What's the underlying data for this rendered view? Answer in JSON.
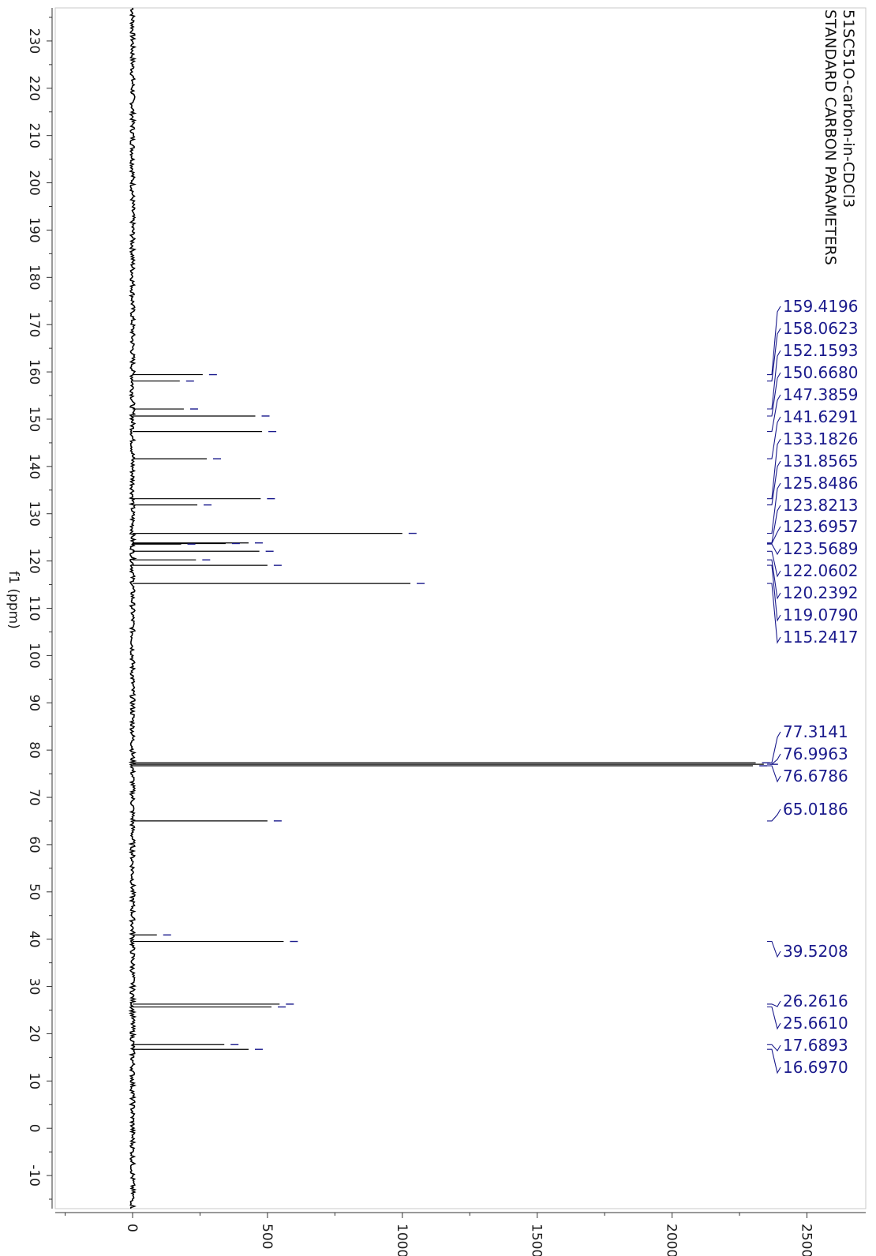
{
  "colors": {
    "spectrum": "#000000",
    "annotation": "#1a1a8c",
    "axis": "#333333",
    "frame": "#c8c8c8"
  },
  "chart_data": {
    "type": "line",
    "orientation": "rotated-90",
    "title_lines": [
      "51SC51O-carbon-in-CDCl3",
      "STANDARD CARBON PARAMETERS"
    ],
    "xlabel": "f1 (ppm)",
    "ylabel": "",
    "xlim": [
      237,
      -17
    ],
    "ylim": [
      -250,
      2700
    ],
    "x_ticks": [
      230,
      220,
      210,
      200,
      190,
      180,
      170,
      160,
      150,
      140,
      130,
      120,
      110,
      100,
      90,
      80,
      70,
      60,
      50,
      40,
      30,
      20,
      10,
      0,
      -10
    ],
    "y_ticks": [
      0,
      500,
      1000,
      1500,
      2000,
      2500
    ],
    "peaks": [
      {
        "ppm": 159.4196,
        "intensity": 260
      },
      {
        "ppm": 158.0623,
        "intensity": 175
      },
      {
        "ppm": 152.1593,
        "intensity": 190
      },
      {
        "ppm": 150.668,
        "intensity": 455
      },
      {
        "ppm": 147.3859,
        "intensity": 480
      },
      {
        "ppm": 141.6291,
        "intensity": 275
      },
      {
        "ppm": 133.1826,
        "intensity": 475
      },
      {
        "ppm": 131.8565,
        "intensity": 240
      },
      {
        "ppm": 125.8486,
        "intensity": 1000
      },
      {
        "ppm": 123.8213,
        "intensity": 430
      },
      {
        "ppm": 123.6957,
        "intensity": 345
      },
      {
        "ppm": 123.5689,
        "intensity": 180
      },
      {
        "ppm": 122.0602,
        "intensity": 470
      },
      {
        "ppm": 120.2392,
        "intensity": 235
      },
      {
        "ppm": 119.079,
        "intensity": 500
      },
      {
        "ppm": 115.2417,
        "intensity": 1030
      },
      {
        "ppm": 77.3141,
        "intensity": 2310
      },
      {
        "ppm": 76.9963,
        "intensity": 2340
      },
      {
        "ppm": 76.6786,
        "intensity": 2300
      },
      {
        "ppm": 65.0186,
        "intensity": 500
      },
      {
        "ppm": 40.9,
        "intensity": 90
      },
      {
        "ppm": 39.5208,
        "intensity": 560
      },
      {
        "ppm": 26.2616,
        "intensity": 545
      },
      {
        "ppm": 25.661,
        "intensity": 515
      },
      {
        "ppm": 17.6893,
        "intensity": 340
      },
      {
        "ppm": 16.697,
        "intensity": 430
      }
    ],
    "labels": [
      {
        "text": "159.4196",
        "ppm": 159.4196
      },
      {
        "text": "158.0623",
        "ppm": 158.0623
      },
      {
        "text": "152.1593",
        "ppm": 152.1593
      },
      {
        "text": "150.6680",
        "ppm": 150.668
      },
      {
        "text": "147.3859",
        "ppm": 147.3859
      },
      {
        "text": "141.6291",
        "ppm": 141.6291
      },
      {
        "text": "133.1826",
        "ppm": 133.1826
      },
      {
        "text": "131.8565",
        "ppm": 131.8565
      },
      {
        "text": "125.8486",
        "ppm": 125.8486
      },
      {
        "text": "123.8213",
        "ppm": 123.8213
      },
      {
        "text": "123.6957",
        "ppm": 123.6957
      },
      {
        "text": "123.5689",
        "ppm": 123.5689
      },
      {
        "text": "122.0602",
        "ppm": 122.0602
      },
      {
        "text": "120.2392",
        "ppm": 120.2392
      },
      {
        "text": "119.0790",
        "ppm": 119.079
      },
      {
        "text": "115.2417",
        "ppm": 115.2417
      },
      {
        "text": "77.3141",
        "ppm": 77.3141
      },
      {
        "text": "76.9963",
        "ppm": 76.9963
      },
      {
        "text": "76.6786",
        "ppm": 76.6786
      },
      {
        "text": "65.0186",
        "ppm": 65.0186
      },
      {
        "text": "39.5208",
        "ppm": 39.5208
      },
      {
        "text": "26.2616",
        "ppm": 26.2616
      },
      {
        "text": "25.6610",
        "ppm": 25.661
      },
      {
        "text": "17.6893",
        "ppm": 17.6893
      },
      {
        "text": "16.6970",
        "ppm": 16.697
      }
    ],
    "grid": false
  }
}
